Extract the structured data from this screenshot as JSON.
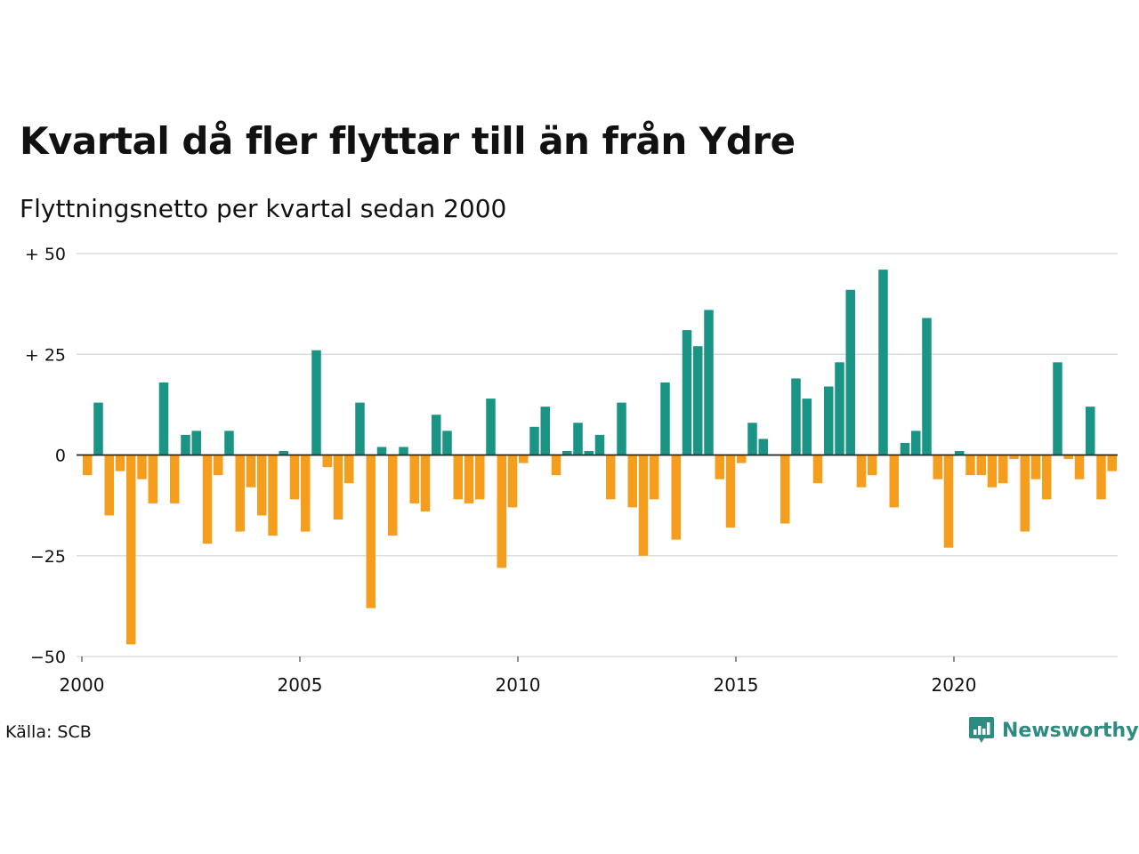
{
  "header": {
    "title": "Kvartal då fler flyttar till än från Ydre",
    "subtitle": "Flyttningsnetto per kvartal sedan 2000"
  },
  "footer": {
    "source": "Källa: SCB",
    "brand": "Newsworthy",
    "brand_icon": "newsworthy-logo-icon"
  },
  "colors": {
    "positive": "#1a9484",
    "negative": "#f59d1c",
    "grid": "#dddddd",
    "brand": "#2e8b82"
  },
  "chart_data": {
    "type": "bar",
    "title": "Kvartal då fler flyttar till än från Ydre",
    "subtitle": "Flyttningsnetto per kvartal sedan 2000",
    "x_start_year": 2000,
    "quarters_per_year": 4,
    "x_ticks": [
      "2000",
      "2005",
      "2010",
      "2015",
      "2020"
    ],
    "y_ticks": [
      {
        "value": 50,
        "label": "+ 50"
      },
      {
        "value": 25,
        "label": "+ 25"
      },
      {
        "value": 0,
        "label": "0"
      },
      {
        "value": -25,
        "label": "−25"
      },
      {
        "value": -50,
        "label": "−50"
      }
    ],
    "ylim": [
      -50,
      50
    ],
    "grid": true,
    "values": [
      -5,
      13,
      -15,
      -4,
      -47,
      -6,
      -12,
      18,
      -12,
      5,
      6,
      -22,
      -5,
      6,
      -19,
      -8,
      -15,
      -20,
      1,
      -11,
      -19,
      26,
      -3,
      -16,
      -7,
      13,
      -38,
      2,
      -20,
      2,
      -12,
      -14,
      10,
      6,
      -11,
      -12,
      -11,
      14,
      -28,
      -13,
      -2,
      7,
      12,
      -5,
      1,
      8,
      1,
      5,
      -11,
      13,
      -13,
      -25,
      -11,
      18,
      -21,
      31,
      27,
      36,
      -6,
      -18,
      -2,
      8,
      4,
      0,
      -17,
      19,
      14,
      -7,
      17,
      23,
      41,
      -8,
      -5,
      46,
      -13,
      3,
      6,
      34,
      -6,
      -23,
      1,
      -5,
      -5,
      -8,
      -7,
      -1,
      -19,
      -6,
      -11,
      23,
      -1,
      -6,
      12,
      -11,
      -4
    ]
  }
}
